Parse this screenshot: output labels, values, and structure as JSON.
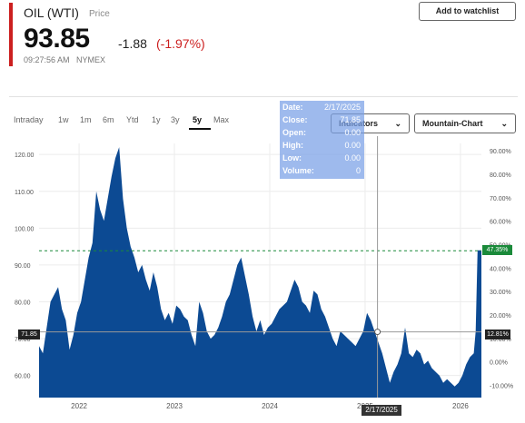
{
  "quote": {
    "ticker": "OIL (WTI)",
    "type_label": "Price",
    "price": "93.85",
    "change": "-1.88",
    "change_pct": "(-1.97%)",
    "timestamp": "09:27:56 AM",
    "exchange": "NYMEX",
    "accent_color": "#cc1f1f"
  },
  "actions": {
    "watchlist_label": "Add to watchlist"
  },
  "ranges": {
    "items": [
      "Intraday",
      "1w",
      "1m",
      "6m",
      "Ytd",
      "1y",
      "3y",
      "5y",
      "Max"
    ],
    "active": "5y"
  },
  "dropdowns": {
    "indicators": "Indicators",
    "chart_type": "Mountain-Chart",
    "chevron_icon": "chevron-down-icon"
  },
  "tooltip": {
    "date_label": "Date:",
    "date_value": "2/17/2025",
    "close_label": "Close:",
    "close_value": "71.85",
    "open_label": "Open:",
    "open_value": "0.00",
    "high_label": "High:",
    "high_value": "0.00",
    "low_label": "Low:",
    "low_value": "0.00",
    "volume_label": "Volume:",
    "volume_value": "0"
  },
  "crosshair": {
    "date": "2/17/2025",
    "price_label": "71.85",
    "pct_label": "12.81%"
  },
  "current_marker": {
    "pct_label": "47.35%",
    "color": "#1a8a3a"
  },
  "chart_data": {
    "type": "area",
    "fill_color": "#0c4a93",
    "x_labels": [
      "2022",
      "2023",
      "2024",
      "2025",
      "2026"
    ],
    "y_left_ticks": [
      "60.00",
      "70.00",
      "80.00",
      "90.00",
      "100.00",
      "110.00",
      "120.00"
    ],
    "y_right_ticks": [
      "-10.00%",
      "0.00%",
      "10.00%",
      "20.00%",
      "30.00%",
      "40.00%",
      "50.00%",
      "60.00%",
      "70.00%",
      "80.00%",
      "90.00%"
    ],
    "ylim": [
      54,
      123
    ],
    "x_range": [
      2021.58,
      2026.22
    ],
    "x": [
      2021.58,
      2021.62,
      2021.66,
      2021.7,
      2021.74,
      2021.78,
      2021.82,
      2021.86,
      2021.9,
      2021.94,
      2021.98,
      2022.02,
      2022.06,
      2022.1,
      2022.14,
      2022.18,
      2022.22,
      2022.26,
      2022.3,
      2022.34,
      2022.38,
      2022.42,
      2022.46,
      2022.5,
      2022.54,
      2022.58,
      2022.62,
      2022.66,
      2022.7,
      2022.74,
      2022.78,
      2022.82,
      2022.86,
      2022.9,
      2022.94,
      2022.98,
      2023.02,
      2023.06,
      2023.1,
      2023.14,
      2023.18,
      2023.22,
      2023.26,
      2023.3,
      2023.34,
      2023.38,
      2023.42,
      2023.46,
      2023.5,
      2023.54,
      2023.58,
      2023.62,
      2023.66,
      2023.7,
      2023.74,
      2023.78,
      2023.82,
      2023.86,
      2023.9,
      2023.94,
      2023.98,
      2024.02,
      2024.06,
      2024.1,
      2024.14,
      2024.18,
      2024.22,
      2024.26,
      2024.3,
      2024.34,
      2024.38,
      2024.42,
      2024.46,
      2024.5,
      2024.54,
      2024.58,
      2024.62,
      2024.66,
      2024.7,
      2024.74,
      2024.78,
      2024.82,
      2024.86,
      2024.9,
      2024.94,
      2024.98,
      2025.02,
      2025.06,
      2025.1,
      2025.14,
      2025.18,
      2025.22,
      2025.26,
      2025.3,
      2025.34,
      2025.38,
      2025.42,
      2025.46,
      2025.5,
      2025.54,
      2025.58,
      2025.62,
      2025.66,
      2025.7,
      2025.74,
      2025.78,
      2025.82,
      2025.86,
      2025.9,
      2025.94,
      2025.98,
      2026.02,
      2026.06,
      2026.1,
      2026.14,
      2026.16,
      2026.18,
      2026.22
    ],
    "values": [
      68,
      66,
      73,
      80,
      82,
      84,
      78,
      75,
      67,
      71,
      77,
      80,
      86,
      92,
      96,
      110,
      105,
      102,
      108,
      114,
      119,
      122,
      108,
      100,
      95,
      92,
      88,
      90,
      86,
      83,
      88,
      84,
      78,
      75,
      77,
      74,
      79,
      78,
      76,
      75,
      71,
      68,
      80,
      77,
      72,
      70,
      71,
      73,
      76,
      80,
      82,
      86,
      90,
      92,
      87,
      82,
      76,
      72,
      75,
      71,
      73,
      74,
      76,
      78,
      79,
      80,
      83,
      86,
      84,
      80,
      79,
      77,
      83,
      82,
      78,
      76,
      73,
      70,
      68,
      72,
      71,
      70,
      69,
      68,
      70,
      72,
      77,
      75,
      72,
      69,
      66,
      62,
      58,
      61,
      63,
      66,
      73,
      66,
      65,
      67,
      66,
      63,
      64,
      62,
      61,
      60,
      58,
      59,
      58,
      57,
      58,
      60,
      63,
      65,
      66,
      72,
      94,
      94
    ]
  }
}
